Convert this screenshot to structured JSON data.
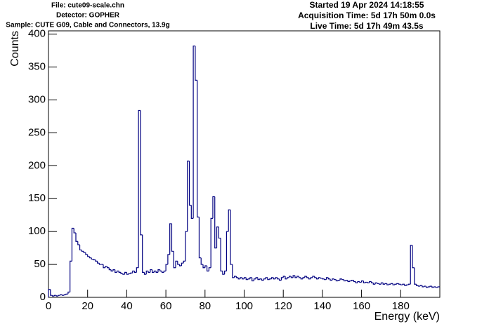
{
  "chart_data": {
    "type": "histogram",
    "header_left": [
      "File: cute09-scale.chn",
      "Detector: GOPHER",
      "Sample: CUTE G09, Cable and Connectors, 13.9g"
    ],
    "header_right": [
      "Started 19 Apr 2024 14:18:55",
      "Acquisition Time: 5d 17h 50m 0.0s",
      "Live Time: 5d 17h 49m 43.5s"
    ],
    "x_label": "Energy (keV)",
    "y_label": "Counts",
    "color": "#000080",
    "xlim": [
      0,
      200
    ],
    "ylim": [
      0,
      405
    ],
    "xticks": [
      0,
      20,
      40,
      60,
      80,
      100,
      120,
      140,
      160,
      180
    ],
    "yticks": [
      0,
      50,
      100,
      150,
      200,
      250,
      300,
      350,
      400
    ],
    "bins": [
      0,
      1,
      2,
      3,
      4,
      5,
      6,
      7,
      8,
      9,
      10,
      11,
      12,
      13,
      14,
      15,
      16,
      17,
      18,
      19,
      20,
      21,
      22,
      23,
      24,
      25,
      26,
      27,
      28,
      29,
      30,
      31,
      32,
      33,
      34,
      35,
      36,
      37,
      38,
      39,
      40,
      41,
      42,
      43,
      44,
      45,
      46,
      47,
      48,
      49,
      50,
      51,
      52,
      53,
      54,
      55,
      56,
      57,
      58,
      59,
      60,
      61,
      62,
      63,
      64,
      65,
      66,
      67,
      68,
      69,
      70,
      71,
      72,
      73,
      74,
      75,
      76,
      77,
      78,
      79,
      80,
      81,
      82,
      83,
      84,
      85,
      86,
      87,
      88,
      89,
      90,
      91,
      92,
      93,
      94,
      95,
      96,
      97,
      98,
      99,
      100,
      101,
      102,
      103,
      104,
      105,
      106,
      107,
      108,
      109,
      110,
      111,
      112,
      113,
      114,
      115,
      116,
      117,
      118,
      119,
      120,
      121,
      122,
      123,
      124,
      125,
      126,
      127,
      128,
      129,
      130,
      131,
      132,
      133,
      134,
      135,
      136,
      137,
      138,
      139,
      140,
      141,
      142,
      143,
      144,
      145,
      146,
      147,
      148,
      149,
      150,
      151,
      152,
      153,
      154,
      155,
      156,
      157,
      158,
      159,
      160,
      161,
      162,
      163,
      164,
      165,
      166,
      167,
      168,
      169,
      170,
      171,
      172,
      173,
      174,
      175,
      176,
      177,
      178,
      179,
      180,
      181,
      182,
      183,
      184,
      185,
      186,
      187,
      188,
      189,
      190,
      191,
      192,
      193,
      194,
      195,
      196,
      197,
      198,
      199,
      200
    ],
    "counts": [
      12,
      3,
      2,
      3,
      2,
      3,
      4,
      3,
      4,
      5,
      8,
      55,
      105,
      98,
      85,
      80,
      72,
      70,
      68,
      65,
      62,
      60,
      58,
      57,
      55,
      52,
      50,
      50,
      45,
      47,
      45,
      42,
      40,
      42,
      38,
      40,
      38,
      36,
      35,
      38,
      35,
      36,
      37,
      40,
      38,
      45,
      284,
      95,
      38,
      35,
      40,
      38,
      42,
      38,
      40,
      38,
      42,
      40,
      38,
      40,
      50,
      65,
      112,
      70,
      45,
      55,
      50,
      48,
      52,
      55,
      100,
      207,
      140,
      120,
      382,
      330,
      122,
      60,
      50,
      45,
      48,
      40,
      45,
      120,
      153,
      75,
      107,
      90,
      40,
      35,
      40,
      100,
      133,
      50,
      30,
      32,
      30,
      28,
      30,
      28,
      30,
      27,
      28,
      30,
      25,
      28,
      30,
      27,
      28,
      26,
      28,
      30,
      27,
      28,
      30,
      28,
      30,
      28,
      26,
      30,
      32,
      28,
      30,
      32,
      30,
      33,
      30,
      32,
      30,
      28,
      30,
      32,
      30,
      28,
      30,
      32,
      30,
      28,
      30,
      29,
      28,
      27,
      30,
      28,
      26,
      28,
      27,
      25,
      26,
      28,
      27,
      25,
      26,
      24,
      25,
      26,
      24,
      22,
      24,
      23,
      25,
      22,
      23,
      22,
      24,
      22,
      20,
      22,
      21,
      20,
      22,
      20,
      21,
      19,
      20,
      21,
      19,
      20,
      21,
      20,
      19,
      20,
      18,
      19,
      20,
      79,
      45,
      20,
      18,
      17,
      18,
      16,
      17,
      15,
      16,
      17,
      15,
      16,
      15,
      16
    ]
  }
}
